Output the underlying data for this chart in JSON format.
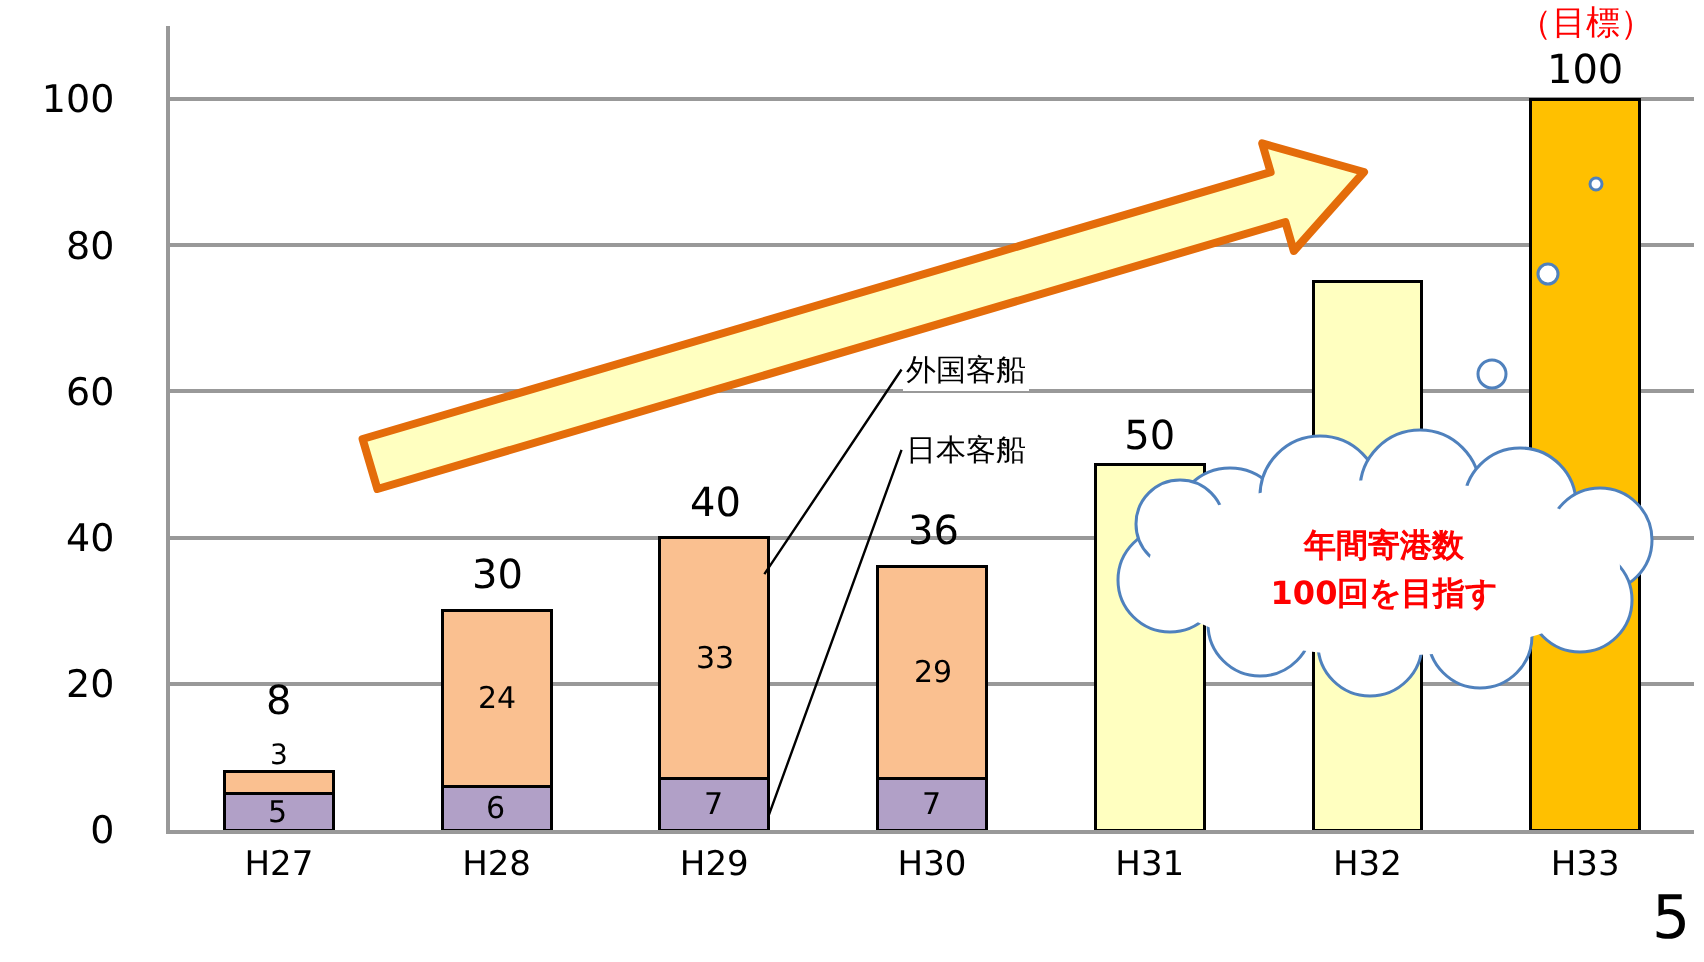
{
  "chart_data": {
    "type": "bar",
    "stacked": true,
    "categories": [
      "H27",
      "H28",
      "H29",
      "H30",
      "H31",
      "H32",
      "H33"
    ],
    "series": [
      {
        "name": "日本客船",
        "color": "#b1a0c7",
        "values": [
          5,
          6,
          7,
          7,
          null,
          null,
          null
        ],
        "value_labels": [
          "5",
          "6",
          "7",
          "7",
          null,
          null,
          null
        ]
      },
      {
        "name": "外国客船",
        "color": "#fac090",
        "values": [
          3,
          24,
          33,
          29,
          null,
          null,
          null
        ],
        "value_labels": [
          "3",
          "24",
          "33",
          "29",
          null,
          null,
          null
        ]
      },
      {
        "colors": [
          null,
          null,
          null,
          null,
          "#ffffc0",
          "#ffffc0",
          "#ffc000"
        ],
        "values": [
          null,
          null,
          null,
          null,
          50,
          75,
          100
        ],
        "value_labels": [
          null,
          null,
          null,
          null,
          "50",
          null,
          "100"
        ]
      }
    ],
    "totals": [
      "8",
      "30",
      "40",
      "36",
      null,
      null,
      null
    ],
    "ylim": [
      0,
      110
    ],
    "yticks": [
      0,
      20,
      40,
      60,
      80,
      100
    ],
    "grid": "y",
    "legend": false,
    "annotations": [
      "年間寄港数\n100回を目指す",
      {
        "text": "（目標）",
        "x": "H33",
        "y": 100
      },
      "5"
    ]
  }
}
